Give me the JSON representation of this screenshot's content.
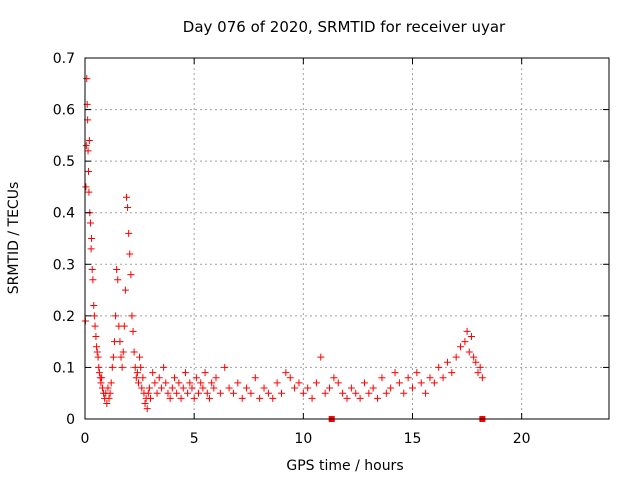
{
  "chart_data": {
    "type": "scatter",
    "title": "Day 076 of 2020, SRMTID for receiver uyar",
    "xlabel": "GPS time / hours",
    "ylabel": "SRMTID / TECUs",
    "xlim": [
      0,
      24
    ],
    "ylim": [
      0,
      0.7
    ],
    "xticks": [
      0,
      5,
      10,
      15,
      20
    ],
    "yticks": [
      0,
      0.1,
      0.2,
      0.3,
      0.4,
      0.5,
      0.6,
      0.7
    ],
    "xtick_labels": [
      "0",
      "5",
      "10",
      "15",
      "20"
    ],
    "ytick_labels": [
      "0",
      "0.1",
      "0.2",
      "0.3",
      "0.4",
      "0.5",
      "0.6",
      "0.7"
    ],
    "grid": true,
    "series": [
      {
        "name": "SRMTID",
        "marker": "plus",
        "color": "#ff0000",
        "x": [
          0.02,
          0.04,
          0.06,
          0.08,
          0.1,
          0.12,
          0.14,
          0.16,
          0.18,
          0.2,
          0.22,
          0.25,
          0.28,
          0.3,
          0.33,
          0.36,
          0.4,
          0.43,
          0.46,
          0.5,
          0.53,
          0.56,
          0.6,
          0.63,
          0.66,
          0.7,
          0.73,
          0.76,
          0.8,
          0.85,
          0.9,
          0.95,
          1.0,
          1.05,
          1.1,
          1.15,
          1.2,
          1.25,
          1.3,
          1.35,
          1.4,
          1.45,
          1.5,
          1.55,
          1.6,
          1.65,
          1.7,
          1.75,
          1.8,
          1.85,
          1.9,
          1.95,
          2.0,
          2.05,
          2.1,
          2.15,
          2.2,
          2.25,
          2.3,
          2.35,
          2.4,
          2.45,
          2.5,
          2.55,
          2.6,
          2.65,
          2.7,
          2.75,
          2.8,
          2.85,
          2.9,
          2.95,
          3.0,
          3.1,
          3.2,
          3.3,
          3.4,
          3.5,
          3.6,
          3.7,
          3.8,
          3.9,
          4.0,
          4.1,
          4.2,
          4.3,
          4.4,
          4.5,
          4.6,
          4.7,
          4.8,
          4.9,
          5.0,
          5.1,
          5.2,
          5.3,
          5.4,
          5.5,
          5.6,
          5.7,
          5.8,
          5.9,
          6.0,
          6.2,
          6.4,
          6.6,
          6.8,
          7.0,
          7.2,
          7.4,
          7.6,
          7.8,
          8.0,
          8.2,
          8.4,
          8.6,
          8.8,
          9.0,
          9.2,
          9.4,
          9.6,
          9.8,
          10.0,
          10.2,
          10.4,
          10.6,
          10.8,
          11.0,
          11.2,
          11.4,
          11.6,
          11.8,
          12.0,
          12.2,
          12.4,
          12.6,
          12.8,
          13.0,
          13.2,
          13.4,
          13.6,
          13.8,
          14.0,
          14.2,
          14.4,
          14.6,
          14.8,
          15.0,
          15.2,
          15.4,
          15.6,
          15.8,
          16.0,
          16.2,
          16.4,
          16.6,
          16.8,
          17.0,
          17.2,
          17.4,
          17.5,
          17.6,
          17.7,
          17.8,
          17.9,
          18.0,
          18.1,
          18.2
        ],
        "y": [
          0.19,
          0.45,
          0.53,
          0.66,
          0.61,
          0.58,
          0.52,
          0.48,
          0.44,
          0.54,
          0.4,
          0.38,
          0.33,
          0.35,
          0.29,
          0.27,
          0.22,
          0.2,
          0.18,
          0.16,
          0.14,
          0.13,
          0.12,
          0.1,
          0.09,
          0.08,
          0.07,
          0.08,
          0.06,
          0.05,
          0.04,
          0.05,
          0.03,
          0.06,
          0.04,
          0.05,
          0.07,
          0.1,
          0.12,
          0.15,
          0.2,
          0.29,
          0.27,
          0.18,
          0.15,
          0.12,
          0.1,
          0.13,
          0.18,
          0.25,
          0.43,
          0.41,
          0.36,
          0.32,
          0.28,
          0.2,
          0.17,
          0.13,
          0.1,
          0.08,
          0.09,
          0.07,
          0.12,
          0.1,
          0.06,
          0.08,
          0.05,
          0.03,
          0.04,
          0.02,
          0.05,
          0.06,
          0.04,
          0.09,
          0.07,
          0.05,
          0.08,
          0.06,
          0.1,
          0.07,
          0.05,
          0.04,
          0.06,
          0.08,
          0.05,
          0.07,
          0.04,
          0.06,
          0.09,
          0.05,
          0.07,
          0.06,
          0.04,
          0.08,
          0.05,
          0.07,
          0.06,
          0.09,
          0.05,
          0.04,
          0.07,
          0.06,
          0.08,
          0.05,
          0.1,
          0.06,
          0.05,
          0.07,
          0.04,
          0.06,
          0.05,
          0.08,
          0.04,
          0.06,
          0.05,
          0.04,
          0.07,
          0.05,
          0.09,
          0.08,
          0.06,
          0.07,
          0.05,
          0.06,
          0.04,
          0.07,
          0.12,
          0.05,
          0.06,
          0.08,
          0.07,
          0.05,
          0.04,
          0.06,
          0.05,
          0.04,
          0.07,
          0.05,
          0.06,
          0.04,
          0.08,
          0.05,
          0.06,
          0.09,
          0.07,
          0.05,
          0.08,
          0.06,
          0.09,
          0.07,
          0.05,
          0.08,
          0.07,
          0.1,
          0.08,
          0.11,
          0.09,
          0.12,
          0.14,
          0.15,
          0.17,
          0.13,
          0.16,
          0.12,
          0.11,
          0.09,
          0.1,
          0.08
        ]
      }
    ],
    "extra_markers": [
      {
        "x": 11.3,
        "y": 0.0,
        "shape": "square"
      },
      {
        "x": 18.2,
        "y": 0.0,
        "shape": "square"
      }
    ]
  }
}
